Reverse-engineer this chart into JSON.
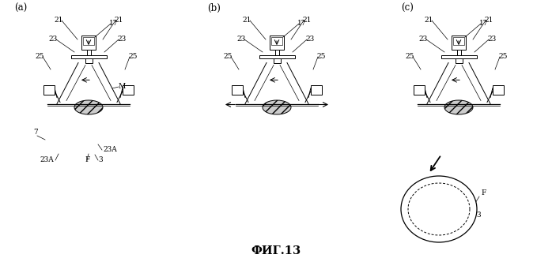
{
  "title": "ФИГ.13",
  "bg_color": "#ffffff",
  "line_color": "#000000",
  "label_a": "(a)",
  "label_b": "(b)",
  "label_c": "(c)"
}
